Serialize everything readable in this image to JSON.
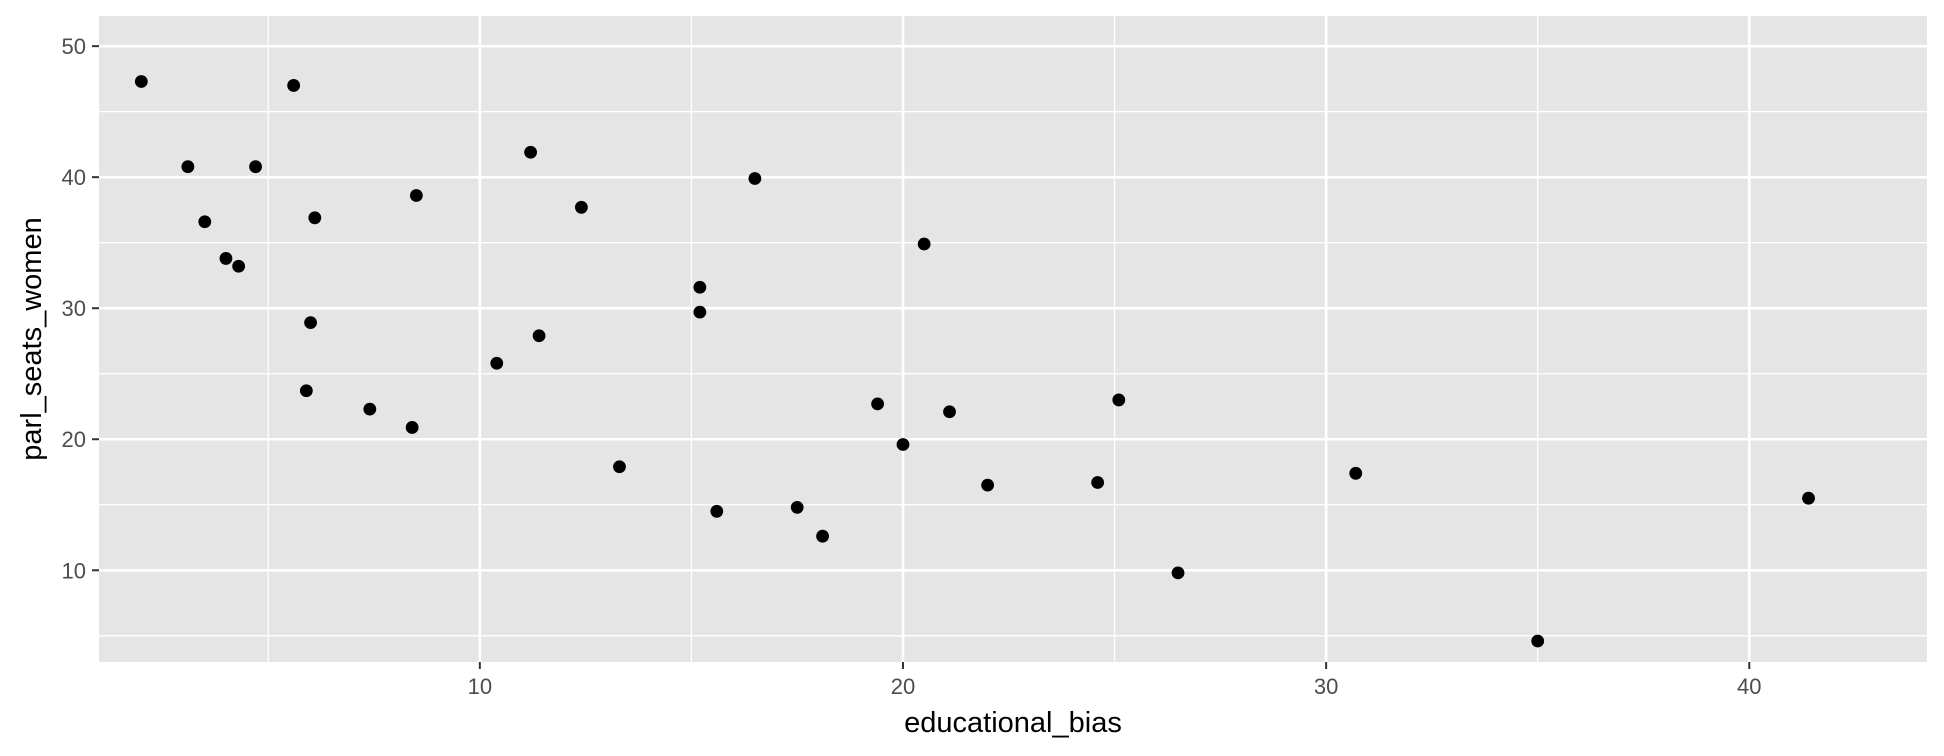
{
  "chart_data": {
    "type": "scatter",
    "title": "",
    "xlabel": "educational_bias",
    "ylabel": "parl_seats_women",
    "xlim": [
      1.0,
      44.2
    ],
    "ylim": [
      3.0,
      52.3
    ],
    "x_major_ticks": [
      10,
      20,
      30,
      40
    ],
    "x_minor_ticks": [
      5,
      15,
      25,
      35
    ],
    "y_major_ticks": [
      10,
      20,
      30,
      40,
      50
    ],
    "y_minor_ticks": [
      5,
      15,
      25,
      35,
      45
    ],
    "x_tick_labels": [
      "10",
      "20",
      "30",
      "40"
    ],
    "y_tick_labels": [
      "10",
      "20",
      "30",
      "40",
      "50"
    ],
    "grid": true,
    "legend": "none",
    "colors": {
      "panel": "#e5e5e5",
      "grid": "#ffffff",
      "point": "#000000"
    },
    "points": [
      {
        "x": 2.0,
        "y": 47.3
      },
      {
        "x": 3.1,
        "y": 40.8
      },
      {
        "x": 3.5,
        "y": 36.6
      },
      {
        "x": 4.0,
        "y": 33.8
      },
      {
        "x": 4.3,
        "y": 33.2
      },
      {
        "x": 4.7,
        "y": 40.8
      },
      {
        "x": 5.6,
        "y": 47.0
      },
      {
        "x": 5.9,
        "y": 23.7
      },
      {
        "x": 6.0,
        "y": 28.9
      },
      {
        "x": 6.1,
        "y": 36.9
      },
      {
        "x": 7.4,
        "y": 22.3
      },
      {
        "x": 8.4,
        "y": 20.9
      },
      {
        "x": 8.5,
        "y": 38.6
      },
      {
        "x": 10.4,
        "y": 25.8
      },
      {
        "x": 11.2,
        "y": 41.9
      },
      {
        "x": 11.4,
        "y": 27.9
      },
      {
        "x": 12.4,
        "y": 37.7
      },
      {
        "x": 13.3,
        "y": 17.9
      },
      {
        "x": 15.2,
        "y": 31.6
      },
      {
        "x": 15.2,
        "y": 29.7
      },
      {
        "x": 15.6,
        "y": 14.5
      },
      {
        "x": 16.5,
        "y": 39.9
      },
      {
        "x": 17.5,
        "y": 14.8
      },
      {
        "x": 18.1,
        "y": 12.6
      },
      {
        "x": 19.4,
        "y": 22.7
      },
      {
        "x": 20.0,
        "y": 19.6
      },
      {
        "x": 20.5,
        "y": 34.9
      },
      {
        "x": 21.1,
        "y": 22.1
      },
      {
        "x": 22.0,
        "y": 16.5
      },
      {
        "x": 24.6,
        "y": 16.7
      },
      {
        "x": 25.1,
        "y": 23.0
      },
      {
        "x": 26.5,
        "y": 9.8
      },
      {
        "x": 30.7,
        "y": 17.4
      },
      {
        "x": 35.0,
        "y": 4.6
      },
      {
        "x": 41.4,
        "y": 15.5
      }
    ]
  }
}
